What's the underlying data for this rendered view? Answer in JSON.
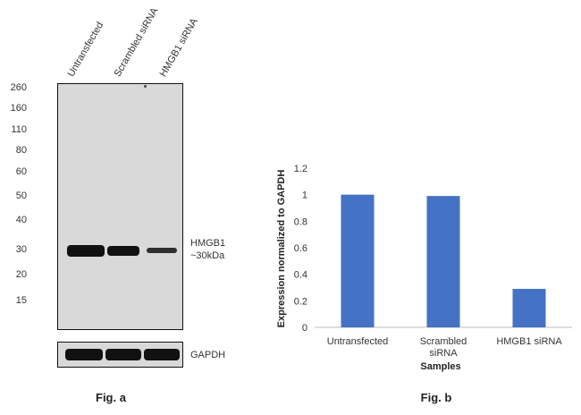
{
  "blot": {
    "lanes": [
      "Untransfected",
      "Scrambled siRNA",
      "HMGB1 siRNA"
    ],
    "mw_markers": [
      "260",
      "160",
      "110",
      "80",
      "60",
      "50",
      "40",
      "30",
      "20",
      "15"
    ],
    "band_label_line1": "HMGB1",
    "band_label_line2": "~30kDa",
    "loading_control_label": "GAPDH",
    "band_intensity": [
      1.0,
      0.99,
      0.29
    ],
    "figure_label": "Fig. a"
  },
  "chart_data": {
    "type": "bar",
    "categories": [
      "Untransfected",
      "Scrambled siRNA",
      "HMGB1 siRNA"
    ],
    "category_lines": [
      [
        "Untransfected"
      ],
      [
        "Scrambled",
        "siRNA"
      ],
      [
        "HMGB1 siRNA"
      ]
    ],
    "values": [
      1.0,
      0.99,
      0.29
    ],
    "title": "",
    "xlabel": "Samples",
    "ylabel": "Expression normalized to GAPDH",
    "ylim": [
      0,
      1.2
    ],
    "yticks": [
      "0",
      "0.2",
      "0.4",
      "0.6",
      "0.8",
      "1",
      "1.2"
    ],
    "bar_color": "#4472c4",
    "grid": false,
    "legend": "none",
    "figure_label": "Fig. b"
  }
}
